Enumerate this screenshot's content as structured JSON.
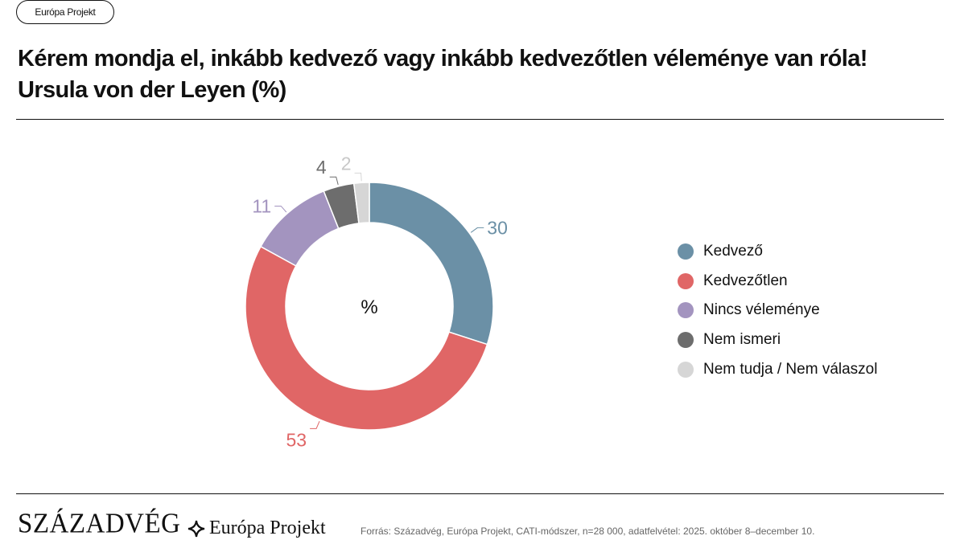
{
  "badge": "Európa Projekt",
  "title_line1": "Kérem mondja el, inkább kedvező vagy inkább kedvezőtlen véleménye van róla!",
  "title_line2": "Ursula von der Leyen (%)",
  "chart_data": {
    "type": "pie",
    "donut": true,
    "center_label": "%",
    "categories": [
      "Kedvező",
      "Kedvezőtlen",
      "Nincs véleménye",
      "Nem ismeri",
      "Nem tudja / Nem válaszol"
    ],
    "values": [
      30,
      53,
      11,
      4,
      2
    ],
    "colors": [
      "#6b90a6",
      "#e06666",
      "#a394bf",
      "#6d6d6d",
      "#d6d6d6"
    ],
    "legend_position": "right"
  },
  "footer": {
    "logo_szazadveg": "SZÁZADVÉG",
    "logo_europa": "Európa Projekt",
    "source": "Forrás: Századvég, Európa Projekt, CATI-módszer, n=28 000, adatfelvétel: 2025. október 8–december 10."
  }
}
